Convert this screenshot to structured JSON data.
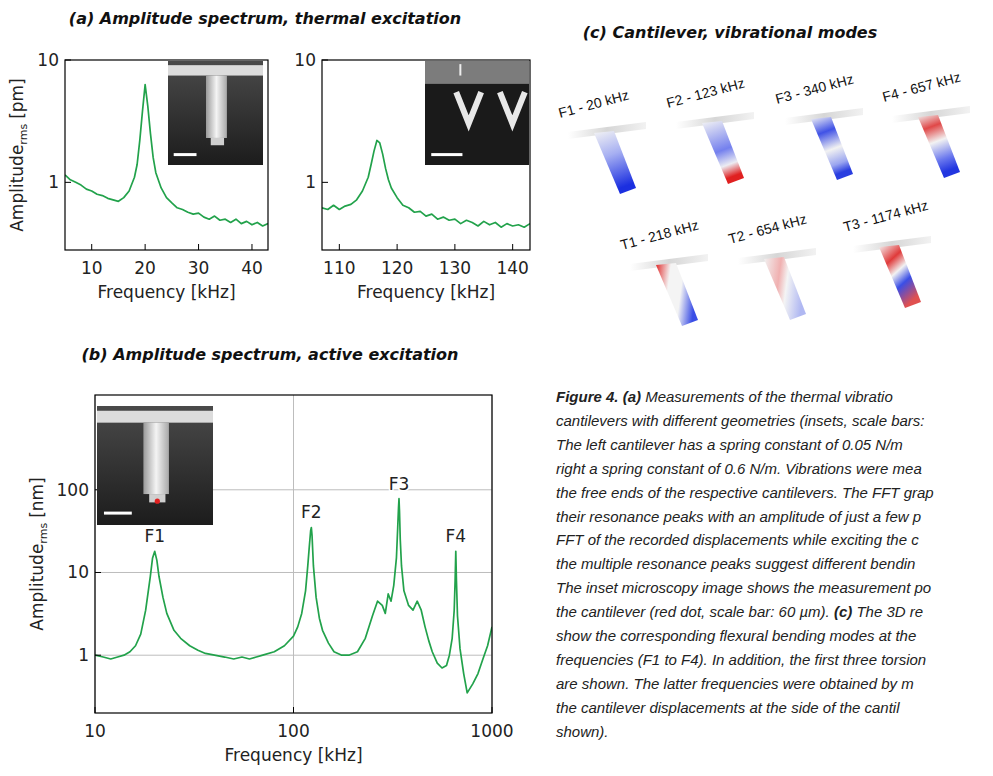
{
  "chart_data": [
    {
      "type": "line",
      "title": "(a) Amplitude spectrum, thermal excitation",
      "x": [
        5,
        6,
        7,
        8,
        9,
        10,
        11,
        12,
        13,
        14,
        15,
        16,
        17,
        18,
        18.5,
        19,
        19.5,
        20,
        20.5,
        21,
        21.5,
        22,
        23,
        24,
        25,
        26,
        27,
        28,
        29,
        30,
        31,
        32,
        33,
        34,
        35,
        36,
        37,
        38,
        39,
        40,
        41,
        42,
        43
      ],
      "values": [
        1.15,
        1.05,
        1.0,
        0.95,
        0.88,
        0.85,
        0.8,
        0.78,
        0.74,
        0.72,
        0.7,
        0.75,
        0.85,
        1.1,
        1.4,
        2.2,
        3.8,
        6.3,
        4.2,
        2.5,
        1.6,
        1.2,
        0.9,
        0.75,
        0.68,
        0.62,
        0.6,
        0.57,
        0.55,
        0.56,
        0.52,
        0.5,
        0.53,
        0.49,
        0.5,
        0.47,
        0.5,
        0.46,
        0.48,
        0.45,
        0.47,
        0.44,
        0.46
      ],
      "color": "#22a24b",
      "xlim": [
        5,
        43
      ],
      "ylim": [
        0.28,
        10
      ],
      "xticks": [
        10,
        20,
        30,
        40
      ],
      "yticks": [
        1,
        10
      ],
      "log": "y",
      "grid": false,
      "xlabel": "Frequency [kHz]",
      "ylabel": {
        "text": "Amplitude",
        "sub": "rms",
        "unit": "[pm]"
      }
    },
    {
      "type": "line",
      "x": [
        107,
        108,
        109,
        110,
        111,
        112,
        113,
        114,
        115,
        115.5,
        116,
        116.5,
        117,
        117.5,
        118,
        118.5,
        119,
        120,
        121,
        122,
        123,
        124,
        125,
        126,
        127,
        128,
        129,
        130,
        131,
        132,
        133,
        134,
        135,
        136,
        137,
        138,
        139,
        140,
        141,
        142,
        143
      ],
      "values": [
        0.62,
        0.6,
        0.65,
        0.6,
        0.64,
        0.66,
        0.72,
        0.85,
        1.1,
        1.4,
        1.8,
        2.2,
        2.1,
        1.7,
        1.3,
        1.05,
        0.9,
        0.75,
        0.65,
        0.62,
        0.57,
        0.58,
        0.53,
        0.55,
        0.5,
        0.52,
        0.49,
        0.5,
        0.46,
        0.49,
        0.47,
        0.44,
        0.48,
        0.45,
        0.47,
        0.43,
        0.46,
        0.44,
        0.45,
        0.43,
        0.46
      ],
      "color": "#22a24b",
      "xlim": [
        107,
        143
      ],
      "ylim": [
        0.28,
        10
      ],
      "xticks": [
        110,
        120,
        130,
        140
      ],
      "yticks": [
        1,
        10
      ],
      "log": "y",
      "grid": false,
      "xlabel": "Frequency [kHz]"
    },
    {
      "type": "line",
      "title": "(b) Amplitude spectrum, active excitation",
      "x": [
        10,
        11,
        12,
        13,
        14,
        15,
        16,
        17,
        18,
        19,
        19.5,
        20,
        20.5,
        21,
        22,
        23,
        25,
        27,
        30,
        33,
        36,
        40,
        45,
        50,
        55,
        60,
        65,
        70,
        80,
        90,
        100,
        105,
        110,
        115,
        118,
        120,
        122,
        123,
        124,
        126,
        130,
        135,
        140,
        150,
        160,
        175,
        190,
        210,
        230,
        250,
        265,
        280,
        290,
        300,
        310,
        320,
        330,
        335,
        338,
        340,
        342,
        345,
        350,
        360,
        380,
        400,
        420,
        440,
        460,
        480,
        500,
        530,
        560,
        590,
        610,
        630,
        645,
        652,
        657,
        662,
        670,
        690,
        720,
        750,
        800,
        850,
        900,
        950,
        1000
      ],
      "values": [
        1.0,
        0.95,
        0.9,
        0.95,
        1.0,
        1.1,
        1.3,
        1.8,
        3.5,
        9,
        15,
        18,
        14,
        9,
        5,
        3.2,
        2.0,
        1.6,
        1.3,
        1.15,
        1.05,
        1.0,
        0.95,
        0.9,
        0.95,
        0.9,
        0.95,
        1.0,
        1.1,
        1.3,
        1.7,
        2.2,
        3.2,
        6,
        12,
        20,
        32,
        35,
        28,
        12,
        5,
        2.8,
        2.0,
        1.4,
        1.1,
        1.0,
        1.0,
        1.1,
        1.6,
        3.0,
        4.5,
        4.0,
        3.2,
        5.5,
        4.5,
        7,
        15,
        35,
        60,
        78,
        55,
        25,
        12,
        6,
        4,
        3.5,
        4.5,
        3.5,
        2.2,
        1.5,
        1.1,
        0.8,
        0.7,
        0.75,
        1.0,
        1.6,
        3.5,
        8,
        18,
        8,
        3,
        1.2,
        0.6,
        0.35,
        0.45,
        0.6,
        0.9,
        1.3,
        2.2
      ],
      "color": "#22a24b",
      "xlim": [
        10,
        1000
      ],
      "ylim": [
        0.2,
        1400
      ],
      "xticks": [
        10,
        100,
        1000
      ],
      "yticks": [
        1,
        10,
        100
      ],
      "log": true,
      "grid": true,
      "xlabel": "Frequency [kHz]",
      "ylabel": {
        "text": "Amplitude",
        "sub": "rms",
        "unit": "[nm]"
      },
      "annotations": [
        {
          "text": "F1",
          "x": 20,
          "y": 18
        },
        {
          "text": "F2",
          "x": 123,
          "y": 35
        },
        {
          "text": "F3",
          "x": 340,
          "y": 78
        },
        {
          "text": "F4",
          "x": 657,
          "y": 18
        }
      ]
    }
  ],
  "modes": {
    "title": "(c) Cantilever, vibrational modes",
    "labels": [
      "F1 - 20 kHz",
      "F2 - 123 kHz",
      "F3 - 340 kHz",
      "F4 - 657 kHz",
      "T1 - 218 kHz",
      "T2 - 654 kHz",
      "T3 - 1174 kHz"
    ]
  },
  "caption": {
    "lines": [
      [
        {
          "text": "Figure 4. (a)",
          "bold": true
        },
        {
          "text": " Measurements of the thermal vibratio"
        }
      ],
      [
        {
          "text": "cantilevers with different geometries (insets, scale bars:"
        }
      ],
      [
        {
          "text": "The left cantilever has a spring constant of 0.05 N/m"
        }
      ],
      [
        {
          "text": "right a spring constant of 0.6 N/m. Vibrations were mea"
        }
      ],
      [
        {
          "text": "the free ends of the respective cantilevers. The FFT grap"
        }
      ],
      [
        {
          "text": "their resonance peaks with an amplitude of just a few p"
        }
      ],
      [
        {
          "text": "FFT of the recorded displacements while exciting the c"
        }
      ],
      [
        {
          "text": "the multiple resonance peaks suggest different bendin"
        }
      ],
      [
        {
          "text": "The inset microscopy image shows the measurement po"
        }
      ],
      [
        {
          "text": "the cantilever (red dot, scale bar: 60 µm). "
        },
        {
          "text": "(c)",
          "bold": true
        },
        {
          "text": " The 3D re"
        }
      ],
      [
        {
          "text": "show the corresponding flexural bending modes at the"
        }
      ],
      [
        {
          "text": "frequencies (F1 to F4). In addition, the first three torsion"
        }
      ],
      [
        {
          "text": "are shown. The latter frequencies were obtained by m"
        }
      ],
      [
        {
          "text": "the cantilever displacements at the side of the cantil"
        }
      ],
      [
        {
          "text": "shown)."
        }
      ]
    ]
  }
}
